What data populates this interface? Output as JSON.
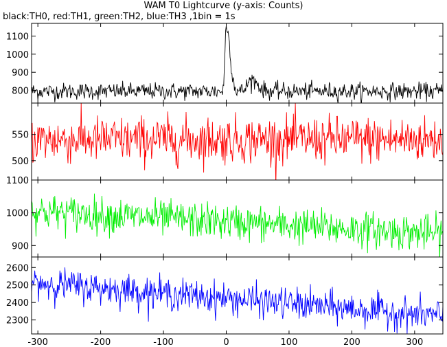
{
  "chart_data": {
    "type": "line",
    "title": "WAM T0 Lightcurve (y-axis: Counts)",
    "subtitle": "black:TH0, red:TH1, green:TH2, blue:TH3 ,1bin = 1s",
    "xlim": [
      -310,
      345
    ],
    "x_ticks": [
      -300,
      -200,
      -100,
      0,
      100,
      200,
      300
    ],
    "x": {
      "start": -310,
      "end": 345,
      "step": 1
    },
    "series": [
      {
        "name": "TH0",
        "color": "#000000",
        "ylim": [
          730,
          1170
        ],
        "y_ticks": [
          800,
          900,
          1000,
          1100
        ],
        "values": {
          "baseline": 795,
          "noise_sd": 23,
          "features": [
            {
              "x": 0,
              "peak": 1160,
              "rise_width": 2,
              "decay_width": 6
            },
            {
              "x": 40,
              "peak": 860,
              "rise_width": 6,
              "decay_width": 10
            }
          ]
        }
      },
      {
        "name": "TH1",
        "color": "#ff0000",
        "ylim": [
          463,
          610
        ],
        "y_ticks": [
          500,
          550
        ],
        "values": {
          "baseline": 540,
          "noise_sd": 22,
          "features": []
        }
      },
      {
        "name": "TH2",
        "color": "#00ee00",
        "ylim": [
          865,
          1100
        ],
        "y_ticks": [
          900,
          1000,
          1100
        ],
        "values": {
          "baseline_start": 1005,
          "baseline_end": 935,
          "noise_sd": 27,
          "features": []
        }
      },
      {
        "name": "TH3",
        "color": "#0000ff",
        "ylim": [
          2220,
          2660
        ],
        "y_ticks": [
          2300,
          2400,
          2500,
          2600
        ],
        "values": {
          "baseline_start": 2515,
          "baseline_end": 2320,
          "noise_sd": 45,
          "features": []
        }
      }
    ],
    "grid": false,
    "legend": "none"
  }
}
